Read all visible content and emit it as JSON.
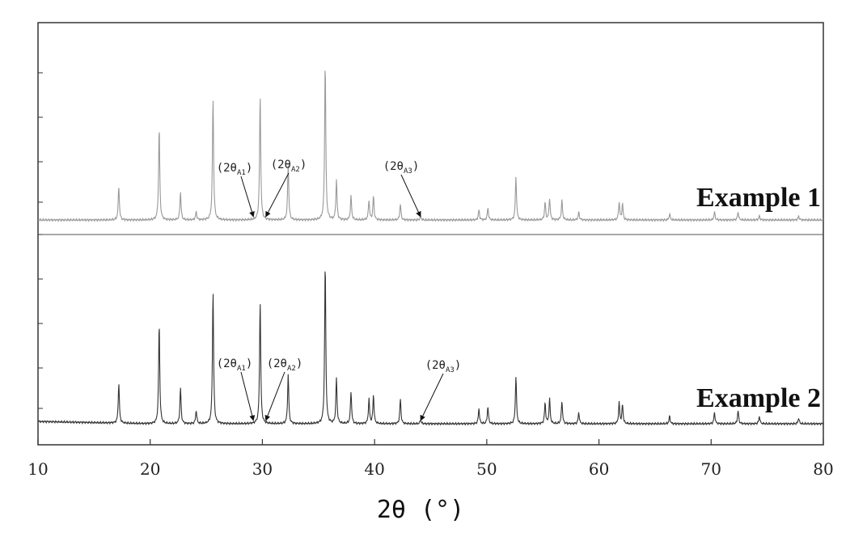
{
  "chart_data": {
    "type": "line",
    "xlabel": "2θ (°)",
    "xlim": [
      10,
      80
    ],
    "xticks": [
      10,
      20,
      30,
      40,
      50,
      60,
      70,
      80
    ],
    "grid": false,
    "series": [
      {
        "name": "Example 1",
        "color": "#999999",
        "peaks": [
          [
            17.2,
            0.17
          ],
          [
            20.8,
            0.47
          ],
          [
            22.7,
            0.14
          ],
          [
            24.1,
            0.04
          ],
          [
            25.6,
            0.62
          ],
          [
            29.8,
            0.63
          ],
          [
            32.3,
            0.28
          ],
          [
            35.6,
            0.8
          ],
          [
            36.6,
            0.2
          ],
          [
            37.9,
            0.12
          ],
          [
            39.5,
            0.1
          ],
          [
            39.9,
            0.12
          ],
          [
            42.3,
            0.08
          ],
          [
            44.1,
            0.02
          ],
          [
            49.3,
            0.05
          ],
          [
            50.1,
            0.06
          ],
          [
            52.6,
            0.22
          ],
          [
            55.2,
            0.09
          ],
          [
            55.6,
            0.11
          ],
          [
            56.7,
            0.1
          ],
          [
            58.2,
            0.04
          ],
          [
            61.8,
            0.09
          ],
          [
            62.1,
            0.08
          ],
          [
            66.3,
            0.03
          ],
          [
            70.3,
            0.04
          ],
          [
            72.4,
            0.04
          ],
          [
            74.3,
            0.02
          ],
          [
            77.8,
            0.02
          ]
        ]
      },
      {
        "name": "Example 2",
        "color": "#333333",
        "peaks": [
          [
            17.2,
            0.21
          ],
          [
            20.8,
            0.53
          ],
          [
            22.7,
            0.19
          ],
          [
            24.1,
            0.07
          ],
          [
            25.6,
            0.7
          ],
          [
            29.8,
            0.65
          ],
          [
            32.3,
            0.26
          ],
          [
            35.6,
            0.85
          ],
          [
            36.6,
            0.24
          ],
          [
            37.9,
            0.17
          ],
          [
            39.5,
            0.13
          ],
          [
            39.9,
            0.15
          ],
          [
            42.3,
            0.13
          ],
          [
            44.1,
            0.02
          ],
          [
            49.3,
            0.08
          ],
          [
            50.1,
            0.09
          ],
          [
            52.6,
            0.25
          ],
          [
            55.2,
            0.11
          ],
          [
            55.6,
            0.13
          ],
          [
            56.7,
            0.12
          ],
          [
            58.2,
            0.06
          ],
          [
            61.8,
            0.11
          ],
          [
            62.1,
            0.1
          ],
          [
            66.3,
            0.04
          ],
          [
            70.3,
            0.06
          ],
          [
            72.4,
            0.07
          ],
          [
            74.3,
            0.04
          ],
          [
            77.8,
            0.03
          ]
        ]
      }
    ],
    "annotations": [
      {
        "series": 0,
        "main": "(2θ",
        "sub": "A1",
        "close": ")",
        "x": 29.2
      },
      {
        "series": 0,
        "main": "(2θ",
        "sub": "A2",
        "close": ")",
        "x": 30.3
      },
      {
        "series": 0,
        "main": "(2θ",
        "sub": "A3",
        "close": ")",
        "x": 44.1
      },
      {
        "series": 1,
        "main": "(2θ",
        "sub": "A1",
        "close": ")",
        "x": 29.2
      },
      {
        "series": 1,
        "main": "(2θ",
        "sub": "A2",
        "close": ")",
        "x": 30.3
      },
      {
        "series": 1,
        "main": "(2θ",
        "sub": "A3",
        "close": ")",
        "x": 44.1
      }
    ]
  }
}
